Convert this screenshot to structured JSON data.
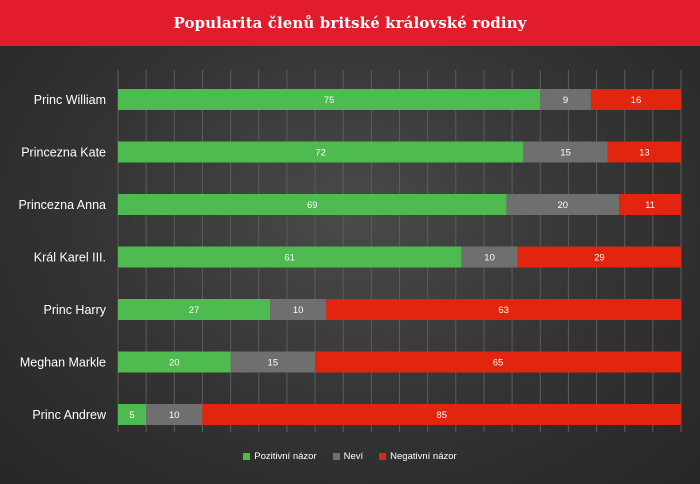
{
  "title": "Popularita členů britské královské rodiny",
  "colors": {
    "header": "#e21b2d",
    "positive": "#4dbb4f",
    "unknown": "#6f6f6f",
    "negative": "#e2250e",
    "grid": "#5c5c5c"
  },
  "chart_data": {
    "type": "bar",
    "orientation": "horizontal",
    "stacked": true,
    "title": "Popularita členů britské královské rodiny",
    "categories": [
      "Princ William",
      "Princezna Kate",
      "Princezna Anna",
      "Král Karel III.",
      "Princ Harry",
      "Meghan Markle",
      "Princ Andrew"
    ],
    "series": [
      {
        "name": "Pozitivní názor",
        "values": [
          75,
          72,
          69,
          61,
          27,
          20,
          5
        ]
      },
      {
        "name": "Neví",
        "values": [
          9,
          15,
          20,
          10,
          10,
          15,
          10
        ]
      },
      {
        "name": "Negativní názor",
        "values": [
          16,
          13,
          11,
          29,
          63,
          65,
          85
        ]
      }
    ],
    "xlim": [
      0,
      100
    ],
    "grid": true,
    "legend_position": "bottom"
  }
}
